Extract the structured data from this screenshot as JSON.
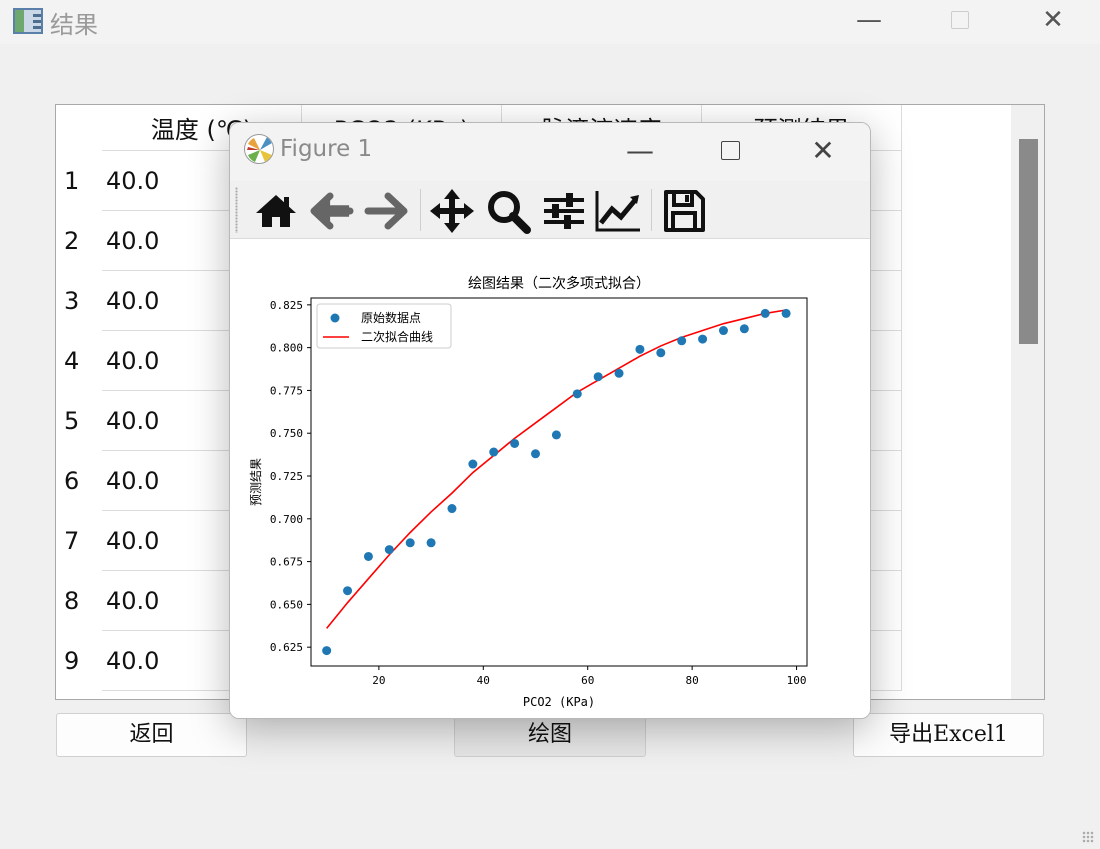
{
  "window": {
    "title": "结果",
    "minimize": "—",
    "close": "✕"
  },
  "table": {
    "columns": [
      "温度 (℃)",
      "PCO2 (KPa)",
      "脉滴流速度",
      "预测结果"
    ],
    "row_numbers": [
      "1",
      "2",
      "3",
      "4",
      "5",
      "6",
      "7",
      "8",
      "9"
    ],
    "first_column_values": [
      "40.0",
      "40.0",
      "40.0",
      "40.0",
      "40.0",
      "40.0",
      "40.0",
      "40.0",
      "40.0"
    ]
  },
  "buttons": {
    "back": "返回",
    "plot": "绘图",
    "export": "导出Excel1"
  },
  "figure": {
    "title": "Figure 1",
    "toolbar": [
      "home-icon",
      "back-arrow-icon",
      "forward-arrow-icon",
      "pan-icon",
      "zoom-icon",
      "configure-subplots-icon",
      "edit-axis-icon",
      "save-icon"
    ]
  },
  "chart_data": {
    "type": "scatter",
    "title": "绘图结果（二次多项式拟合）",
    "xlabel": "PCO2 (KPa)",
    "ylabel": "预测结果",
    "xlim": [
      7,
      102
    ],
    "ylim": [
      0.614,
      0.829
    ],
    "xticks": [
      20,
      40,
      60,
      80,
      100
    ],
    "yticks": [
      0.625,
      0.65,
      0.675,
      0.7,
      0.725,
      0.75,
      0.775,
      0.8,
      0.825
    ],
    "legend_position": "top-left",
    "series": [
      {
        "name": "原始数据点",
        "kind": "scatter",
        "color": "#1f77b4",
        "x": [
          10,
          14,
          18,
          22,
          26,
          30,
          34,
          38,
          42,
          46,
          50,
          54,
          58,
          62,
          66,
          70,
          74,
          78,
          82,
          86,
          90,
          94,
          98
        ],
        "y": [
          0.623,
          0.658,
          0.678,
          0.682,
          0.686,
          0.686,
          0.706,
          0.732,
          0.739,
          0.744,
          0.738,
          0.749,
          0.773,
          0.783,
          0.785,
          0.799,
          0.797,
          0.804,
          0.805,
          0.81,
          0.811,
          0.82,
          0.82
        ]
      },
      {
        "name": "二次拟合曲线",
        "kind": "line",
        "color": "#ff0000",
        "x": [
          10,
          14,
          18,
          22,
          26,
          30,
          34,
          38,
          42,
          46,
          50,
          54,
          58,
          62,
          66,
          70,
          74,
          78,
          82,
          86,
          90,
          94,
          98
        ],
        "y": [
          0.636,
          0.651,
          0.665,
          0.679,
          0.692,
          0.704,
          0.715,
          0.727,
          0.737,
          0.747,
          0.756,
          0.765,
          0.774,
          0.781,
          0.788,
          0.795,
          0.801,
          0.806,
          0.81,
          0.814,
          0.817,
          0.82,
          0.822
        ]
      }
    ]
  }
}
